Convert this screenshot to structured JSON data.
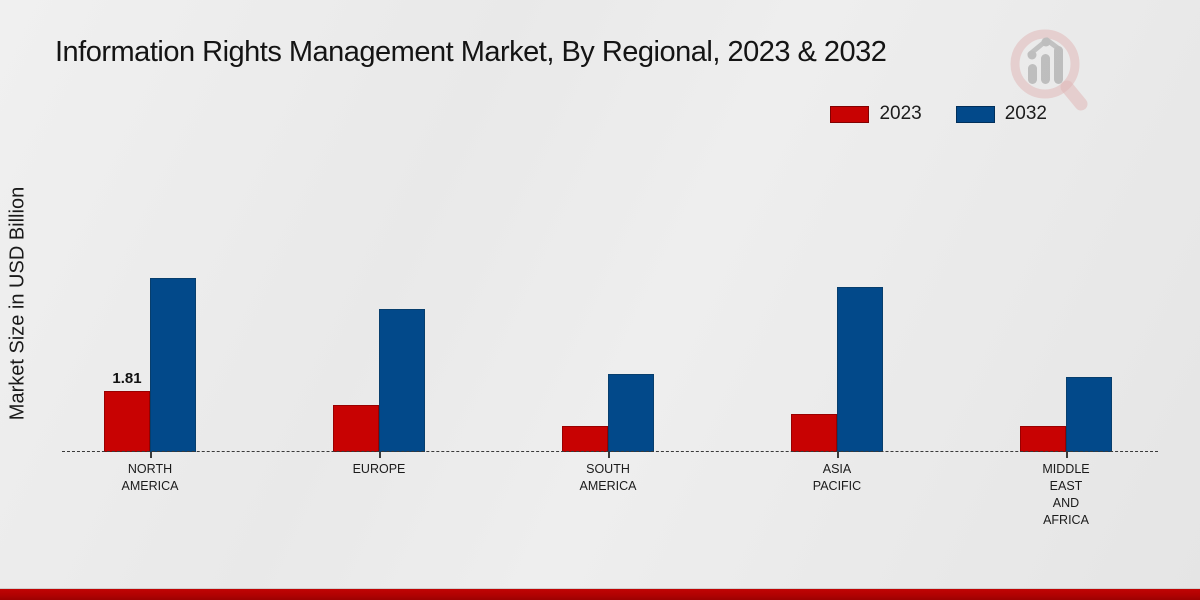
{
  "title": "Information Rights Management Market, By Regional, 2023 & 2032",
  "ylabel": "Market Size in USD Billion",
  "colors": {
    "series_2023_red": "#c80202",
    "series_2032_blue": "#02498a",
    "footer_stripe_red": "#b10202",
    "background_gray": "#e9e9e9",
    "axis_dash": "#3a3a3a",
    "watermark_pink": "#d98f8f",
    "watermark_gray": "#9a9a9a"
  },
  "legend": {
    "position": "top-right",
    "items": [
      {
        "label": "2023",
        "color": "#c80202"
      },
      {
        "label": "2032",
        "color": "#02498a"
      }
    ]
  },
  "watermark": {
    "name": "magnifier-bar-chart-logo"
  },
  "chart_data": {
    "type": "bar",
    "title": "Information Rights Management Market, By Regional, 2023 & 2032",
    "xlabel": "",
    "ylabel": "Market Size in USD Billion",
    "categories": [
      "North America",
      "Europe",
      "South America",
      "Asia Pacific",
      "Middle East and Africa"
    ],
    "category_label_lines": [
      [
        "NORTH",
        "AMERICA"
      ],
      [
        "EUROPE"
      ],
      [
        "SOUTH",
        "AMERICA"
      ],
      [
        "ASIA",
        "PACIFIC"
      ],
      [
        "MIDDLE",
        "EAST",
        "AND",
        "AFRICA"
      ]
    ],
    "series": [
      {
        "name": "2023",
        "color": "#c80202",
        "values": [
          1.81,
          1.4,
          0.77,
          1.13,
          0.77
        ]
      },
      {
        "name": "2032",
        "color": "#02498a",
        "values": [
          5.16,
          4.24,
          2.31,
          4.9,
          2.23
        ]
      }
    ],
    "data_labels": [
      {
        "series": "2023",
        "category": "North America",
        "text": "1.81"
      }
    ],
    "ylim": [
      0,
      5.5
    ],
    "grid": false,
    "legend_position": "top-right",
    "baseline_style": "dashed",
    "note": "Only the North America 2023 bar carries an explicit data label (1.81); other values estimated from bar heights."
  }
}
